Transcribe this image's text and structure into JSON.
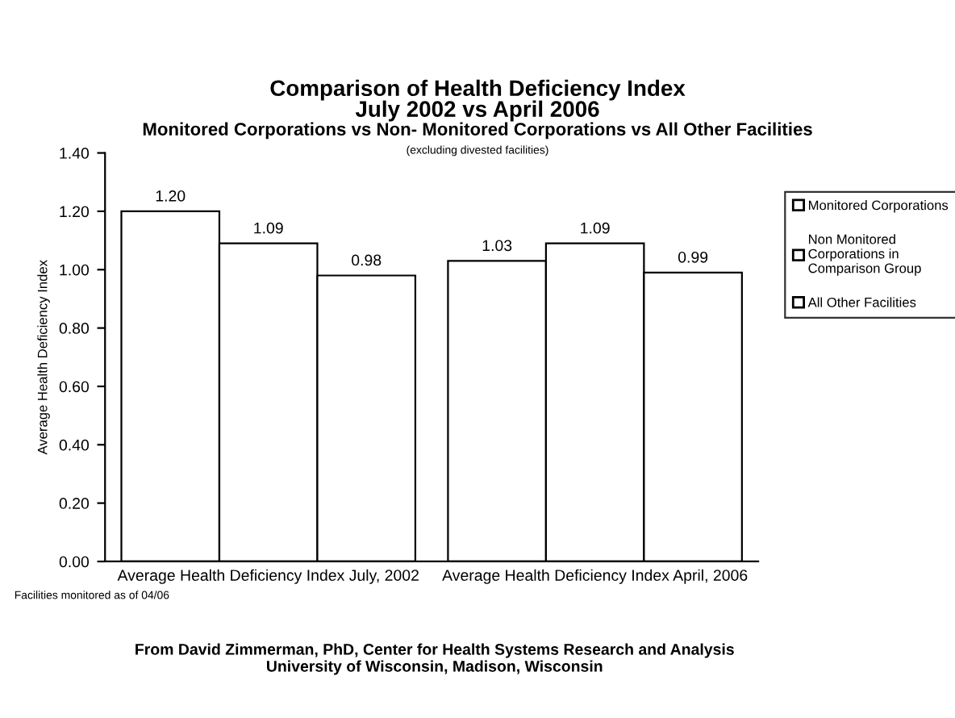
{
  "chart_data": {
    "type": "bar",
    "title": "Comparison of Health Deficiency Index\nJuly 2002 vs April 2006",
    "subtitle": "Monitored Corporations vs Non- Monitored Corporations vs All Other Facilities",
    "ylabel": "Average Health Deficiency Index",
    "categories": [
      "Average Health Deficiency Index July, 2002",
      "Average Health Deficiency Index April, 2006"
    ],
    "series": [
      {
        "name": "Monitored Corporations",
        "color": "#ffffff",
        "values": [
          1.2,
          1.03
        ],
        "value_labels": [
          "1.20",
          "1.03"
        ]
      },
      {
        "name": "Non Monitored\nCorporations in\nComparison Group",
        "color": "#ffffff",
        "values": [
          1.09,
          1.09
        ],
        "value_labels": [
          "1.09",
          "1.09"
        ]
      },
      {
        "name": "All Other Facilities",
        "color": "#ffffff",
        "values": [
          0.98,
          0.99
        ],
        "value_labels": [
          "0.98",
          "0.99"
        ]
      }
    ],
    "ylim": [
      0,
      1.4
    ],
    "yticks": [
      {
        "value": 0,
        "label": "0.00"
      },
      {
        "value": 0.2,
        "label": "0.20"
      },
      {
        "value": 0.4,
        "label": "0.40"
      },
      {
        "value": 0.6,
        "label": "0.60"
      },
      {
        "value": 0.8,
        "label": "0.80"
      },
      {
        "value": 1.0,
        "label": "1.00"
      },
      {
        "value": 1.2,
        "label": "1.20"
      },
      {
        "value": 1.4,
        "label": "1.40"
      }
    ],
    "grid": false,
    "legend": "right",
    "annotations": [
      "(excluding divested facilities)",
      "Facilities monitored as of 04/06",
      "From David Zimmerman, PhD, Center for Health Systems Research and Analysis\nUniversity of Wisconsin, Madison, Wisconsin"
    ]
  }
}
